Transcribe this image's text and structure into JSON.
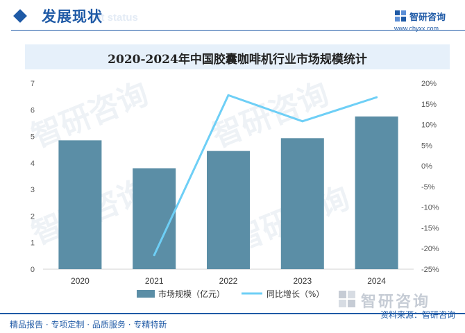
{
  "header": {
    "title": "发展现状",
    "subtitle": "ent status",
    "brand_name": "智研咨询",
    "brand_url": "www.chyxx.com"
  },
  "watermark_text": "智研咨询",
  "chart_data": {
    "type": "bar+line",
    "title": "2020-2024年中国胶囊咖啡机行业市场规模统计",
    "categories": [
      "2020",
      "2021",
      "2022",
      "2023",
      "2024"
    ],
    "series": [
      {
        "name": "市场规模（亿元）",
        "type": "bar",
        "axis": "left",
        "color": "#5b8ea6",
        "values": [
          4.85,
          3.8,
          4.45,
          4.93,
          5.75
        ]
      },
      {
        "name": "同比增长（%）",
        "type": "line",
        "axis": "right",
        "color": "#6ecff6",
        "values": [
          null,
          -21.6,
          17.1,
          10.8,
          16.6
        ]
      }
    ],
    "y_left": {
      "min": 0,
      "max": 7,
      "ticks": [
        "0",
        "1",
        "2",
        "3",
        "4",
        "5",
        "6",
        "7"
      ]
    },
    "y_right": {
      "min": -25,
      "max": 20,
      "ticks": [
        "-25%",
        "-20%",
        "-15%",
        "-10%",
        "-5%",
        "0%",
        "5%",
        "10%",
        "15%",
        "20%"
      ]
    },
    "grid": false,
    "legend_position": "bottom"
  },
  "footer": {
    "left_text": "精品报告 · 专项定制 · 品质服务 · 专精特新",
    "right_text": "资料来源：智研咨询",
    "brand": "智研咨询"
  }
}
